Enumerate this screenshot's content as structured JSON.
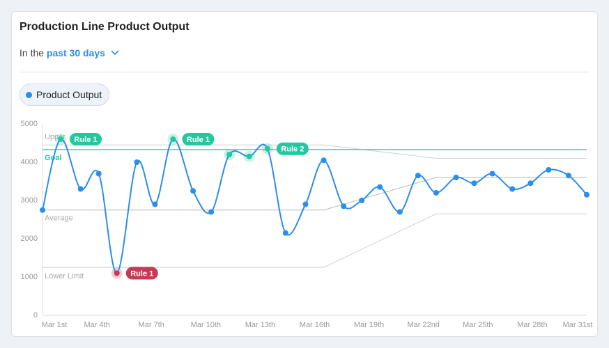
{
  "chart_data": {
    "type": "line",
    "title": "Production Line Product Output",
    "filter_prefix": "In the",
    "filter_value": "past 30 days",
    "x": [
      1,
      2.0,
      3.1,
      4.1,
      5.1,
      6.2,
      7.2,
      8.2,
      9.3,
      10.3,
      11.3,
      12.4,
      13.4,
      14.4,
      15.5,
      16.5,
      17.6,
      18.6,
      19.6,
      20.7,
      21.7,
      22.7,
      23.8,
      24.8,
      25.8,
      26.9,
      27.9,
      28.9,
      30.0,
      31
    ],
    "series": [
      {
        "name": "Product Output",
        "color": "#2b8ded",
        "values": [
          2750,
          4600,
          3300,
          3700,
          1100,
          4000,
          2900,
          4600,
          3250,
          2700,
          4200,
          4150,
          4350,
          2150,
          2900,
          4050,
          2850,
          3000,
          3350,
          2700,
          3650,
          3200,
          3600,
          3450,
          3700,
          3300,
          3450,
          3800,
          3650,
          3150
        ]
      }
    ],
    "xlim": [
      1,
      31
    ],
    "xticks": [
      {
        "value": 1,
        "label": "Mar 1st"
      },
      {
        "value": 4,
        "label": "Mar 4th"
      },
      {
        "value": 7,
        "label": "Mar 7th"
      },
      {
        "value": 10,
        "label": "Mar 10th"
      },
      {
        "value": 13,
        "label": "Mar 13th"
      },
      {
        "value": 16,
        "label": "Mar 16th"
      },
      {
        "value": 19,
        "label": "Mar 19th"
      },
      {
        "value": 22,
        "label": "Mar 22nd"
      },
      {
        "value": 25,
        "label": "Mar 25th"
      },
      {
        "value": 28,
        "label": "Mar 28th"
      },
      {
        "value": 31,
        "label": "Mar 31st"
      }
    ],
    "ylim": [
      0,
      5000
    ],
    "yticks": [
      0,
      1000,
      2000,
      3000,
      4000,
      5000
    ],
    "reference_lines": [
      {
        "name": "Upper",
        "color": "#d0d0d0",
        "x": [
          1,
          16.5,
          22.7,
          31
        ],
        "values": [
          4450,
          4450,
          4100,
          4100
        ]
      },
      {
        "name": "Goal",
        "color": "#3fd6b0",
        "x": [
          1,
          31
        ],
        "values": [
          4330,
          4330
        ]
      },
      {
        "name": "Average",
        "color": "#b8b8b8",
        "x": [
          1,
          16.5,
          22.7,
          31
        ],
        "values": [
          2750,
          2750,
          3600,
          3600
        ]
      },
      {
        "name": "Lower Limit",
        "color": "#d0d0d0",
        "x": [
          1,
          16.5,
          22.7,
          31
        ],
        "values": [
          1250,
          1250,
          2650,
          2650
        ]
      }
    ],
    "annotations": [
      {
        "label": "Rule 1",
        "color": "#22c99e",
        "points": [
          1
        ]
      },
      {
        "label": "Rule 1",
        "color": "#c63a56",
        "points": [
          4
        ]
      },
      {
        "label": "Rule 1",
        "color": "#22c99e",
        "points": [
          7
        ]
      },
      {
        "label": "Rule 2",
        "color": "#22c99e",
        "points": [
          10,
          11,
          12
        ]
      }
    ]
  }
}
